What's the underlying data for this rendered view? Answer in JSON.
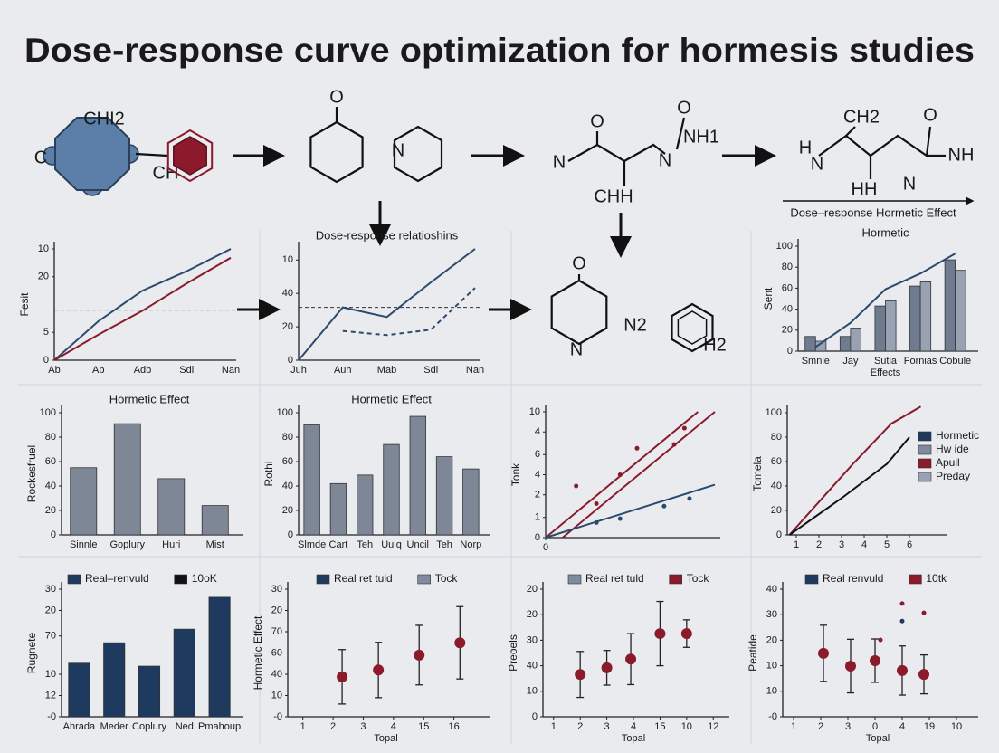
{
  "title": "Dose-response curve optimization for hormesis studies",
  "diagram": {
    "labels": [
      "CHI2",
      "C",
      "CH",
      "O",
      "N",
      "O",
      "N",
      "O",
      "N",
      "NH1",
      "CHH",
      "CH2",
      "H",
      "N",
      "NH",
      "O",
      "HH",
      "N",
      "Dose–response  Hormetic Effect",
      "O",
      "N",
      "N2",
      "H2"
    ]
  },
  "chart_data": [
    {
      "type": "line",
      "ylabel": "Fesit",
      "categories": [
        "Ab",
        "Ab",
        "Adb",
        "Sdl",
        "Nan"
      ],
      "ylim": [
        0,
        20
      ],
      "yticks": [
        0,
        5,
        {
          "value": 15,
          "label": "20"
        },
        {
          "value": 20,
          "label": "10"
        }
      ],
      "reference_line": 9,
      "series": [
        {
          "color": "#2c4a6e",
          "values": [
            0,
            7,
            12.5,
            16,
            20
          ]
        },
        {
          "color": "#8b1a2b",
          "values": [
            0,
            4.6,
            8.9,
            13.8,
            18.4
          ]
        }
      ]
    },
    {
      "type": "line",
      "title": "Dose-response relatioshins",
      "categories": [
        "Juh",
        "Auh",
        "Mab",
        "Sdl",
        "Nan"
      ],
      "ylim": [
        0,
        40
      ],
      "yticks": [
        0,
        {
          "value": 12,
          "label": "20"
        },
        {
          "value": 24,
          "label": "40"
        },
        {
          "value": 36,
          "label": "10"
        }
      ],
      "reference_line": 19,
      "series": [
        {
          "color": "#2c4a6e",
          "values": [
            0,
            19,
            15.5,
            28,
            40
          ]
        },
        {
          "color": "#2c4a6e",
          "dashed": true,
          "values": [
            null,
            10.5,
            9,
            11,
            26
          ]
        }
      ]
    },
    {
      "type": "bar_line",
      "title": "Hormetic",
      "ylabel": "Sent",
      "xlabel": "Effects",
      "categories": [
        "Smnle",
        "Jay",
        "Sutia",
        "Fornias",
        "Cobule"
      ],
      "ylim": [
        0,
        100
      ],
      "yticks": [
        0,
        20,
        40,
        60,
        80,
        100
      ],
      "series": [
        {
          "color": "#6f7b8f",
          "values": [
            14,
            14,
            43,
            62,
            87
          ]
        },
        {
          "color": "#98a2b3",
          "values": [
            9.5,
            22,
            48,
            66,
            77
          ]
        },
        {
          "color": "#2c4a6e",
          "style": "line",
          "values": [
            4,
            27,
            59,
            74,
            93
          ]
        }
      ]
    },
    {
      "type": "bar",
      "title": "Hormetic Effect",
      "ylabel": "Rockesfruel",
      "categories": [
        "Sinnle",
        "Goplury",
        "Huri",
        "Mist"
      ],
      "values": [
        55,
        91,
        46,
        24
      ],
      "color": "#7d8796",
      "ylim": [
        0,
        100
      ],
      "yticks": [
        0,
        20,
        40,
        60,
        80,
        100
      ]
    },
    {
      "type": "bar",
      "title": "Hormetic Effect",
      "ylabel": "Rothi",
      "categories": [
        "Slmde",
        "Cart",
        "Teh",
        "Uuiq",
        "Uncil",
        "Teh",
        "Norp"
      ],
      "values": [
        90,
        42,
        49,
        74,
        97,
        64,
        54
      ],
      "color": "#7d8796",
      "ylim": [
        0,
        100
      ],
      "yticks": [
        0,
        20,
        40,
        60,
        80,
        100
      ]
    },
    {
      "type": "line",
      "ylabel": "Tonk",
      "xlim": [
        0,
        10
      ],
      "xticks": [
        0
      ],
      "ylim": [
        0,
        10
      ],
      "yticks": [
        0,
        {
          "value": 1.6,
          "label": "1"
        },
        {
          "value": 3.4,
          "label": "2"
        },
        {
          "value": 5,
          "label": "4"
        },
        {
          "value": 6.6,
          "label": "6"
        },
        {
          "value": 8.4,
          "label": "4"
        },
        10
      ],
      "series": [
        {
          "color": "#8b1a2b",
          "x": [
            0,
            9
          ],
          "values": [
            0,
            10
          ]
        },
        {
          "color": "#8b1a2b",
          "x": [
            1,
            10
          ],
          "values": [
            0,
            10
          ]
        },
        {
          "color": "#2c4a6e",
          "x": [
            0,
            10
          ],
          "values": [
            0,
            4.2
          ]
        },
        {
          "color": "#8b1a2b",
          "style": "points",
          "x": [
            1.8,
            3,
            4.4,
            5.4,
            7.6,
            8.2
          ],
          "values": [
            4.1,
            2.7,
            5,
            7.1,
            7.4,
            8.7
          ]
        },
        {
          "color": "#2c4a6e",
          "style": "points",
          "x": [
            3,
            4.4,
            7,
            8.5
          ],
          "values": [
            1.2,
            1.5,
            2.5,
            3.1
          ]
        }
      ]
    },
    {
      "type": "line",
      "ylabel": "Tomela",
      "xlim": [
        0.6,
        7.4
      ],
      "xticks": [
        1,
        2,
        3,
        4,
        5,
        6
      ],
      "ylim": [
        0,
        100
      ],
      "yticks": [
        0,
        20,
        40,
        60,
        80,
        100
      ],
      "legend": [
        {
          "name": "Hormetic",
          "color": "#1f3a5f"
        },
        {
          "name": "Hw ide",
          "color": "#7f8ba0"
        },
        {
          "name": "Apuil",
          "color": "#8b1a2b"
        },
        {
          "name": "Preday",
          "color": "#98a2b3"
        }
      ],
      "series": [
        {
          "color": "#8b1a2b",
          "x": [
            0.7,
            3.5,
            5.2,
            6.5
          ],
          "values": [
            0,
            58,
            91,
            105
          ]
        },
        {
          "color": "#111111",
          "x": [
            0.7,
            3,
            5,
            6
          ],
          "values": [
            0,
            30,
            58,
            80
          ]
        }
      ]
    },
    {
      "type": "bar",
      "ylabel": "Rugnete",
      "categories": [
        "Ahrada",
        "Meder",
        "Coplury",
        "Ned",
        "Pmahoup"
      ],
      "values": [
        12.6,
        17.4,
        11.9,
        20.6,
        28.1
      ],
      "color": "#1f3a5f",
      "ylim": [
        0,
        30
      ],
      "yticks": [
        {
          "value": 0,
          "label": "-0"
        },
        {
          "value": 5,
          "label": "12"
        },
        10,
        {
          "value": 19,
          "label": "70"
        },
        {
          "value": 25,
          "label": "20"
        },
        30
      ],
      "legend": [
        {
          "name": "Real–renvuld",
          "color": "#1f3a5f"
        },
        {
          "name": "10oK",
          "color": "#111111"
        }
      ]
    },
    {
      "type": "errorbar",
      "ylabel": "Hormetic Effect",
      "xlabel": "Topal",
      "xlim": [
        0.5,
        7
      ],
      "xticks": [
        1,
        2,
        3,
        4,
        {
          "value": 5,
          "label": "15"
        },
        {
          "value": 6,
          "label": "16"
        }
      ],
      "ylim": [
        0,
        30
      ],
      "yticks": [
        {
          "value": 0,
          "label": "-0"
        },
        {
          "value": 5,
          "label": "10"
        },
        {
          "value": 10,
          "label": "40"
        },
        {
          "value": 15,
          "label": "60"
        },
        {
          "value": 20,
          "label": "70"
        },
        {
          "value": 25,
          "label": "20"
        },
        30
      ],
      "legend": [
        {
          "name": "Real ret tuld",
          "color": "#1f3a5f"
        },
        {
          "name": "Tock",
          "color": "#7f8ba0"
        }
      ],
      "series": [
        {
          "color": "#8b1a2b",
          "x": [
            2.3,
            3.5,
            4.85,
            6.2
          ],
          "values": [
            9.4,
            11,
            14.5,
            17.4
          ],
          "errors": [
            6.4,
            6.5,
            7,
            8.5
          ]
        }
      ]
    },
    {
      "type": "errorbar",
      "ylabel": "Preoels",
      "xlabel": "Topal",
      "xlim": [
        0.6,
        7.4
      ],
      "xticks": [
        1,
        2,
        3,
        4,
        {
          "value": 5,
          "label": "15"
        },
        {
          "value": 6,
          "label": "10"
        },
        {
          "value": 7,
          "label": "12"
        }
      ],
      "ylim": [
        0,
        25
      ],
      "yticks": [
        0,
        {
          "value": 5,
          "label": "10"
        },
        {
          "value": 10,
          "label": "40"
        },
        {
          "value": 15,
          "label": "30"
        },
        {
          "value": 20,
          "label": "20"
        },
        {
          "value": 25,
          "label": "20"
        }
      ],
      "legend": [
        {
          "name": "Real ret tuld",
          "color": "#7f8ba0"
        },
        {
          "name": "Tock",
          "color": "#8b1a2b"
        }
      ],
      "series": [
        {
          "color": "#8b1a2b",
          "x": [
            2,
            3,
            3.9,
            5,
            6
          ],
          "values": [
            8.3,
            9.6,
            11.3,
            16.3,
            16.3
          ],
          "errors": [
            4.5,
            3.4,
            5,
            6.3,
            2.7
          ]
        }
      ]
    },
    {
      "type": "errorbar",
      "ylabel": "Peatide",
      "xlabel": "Topal",
      "xlim": [
        0.6,
        7.6
      ],
      "xticks": [
        1,
        2,
        3,
        {
          "value": 4,
          "label": "0"
        },
        {
          "value": 5,
          "label": "4"
        },
        {
          "value": 6,
          "label": "19"
        },
        {
          "value": 7,
          "label": "10"
        }
      ],
      "ylim": [
        0,
        40
      ],
      "yticks": [
        {
          "value": 0,
          "label": "-0"
        },
        {
          "value": 8,
          "label": "10"
        },
        {
          "value": 16,
          "label": "10"
        },
        {
          "value": 24,
          "label": "20"
        },
        {
          "value": 32,
          "label": "30"
        },
        40
      ],
      "legend": [
        {
          "name": "Real renvuld",
          "color": "#1f3a5f"
        },
        {
          "name": "10tk",
          "color": "#8b1a2b"
        }
      ],
      "series": [
        {
          "color": "#8b1a2b",
          "x": [
            2.1,
            3.1,
            4,
            5,
            5.8
          ],
          "values": [
            19.9,
            15.9,
            17.6,
            14.5,
            13.3
          ],
          "errors": [
            8.8,
            8.4,
            6.8,
            7.7,
            6.1
          ]
        },
        {
          "color": "#8b1a2b",
          "style": "points",
          "x": [
            4.2,
            5,
            5.8
          ],
          "values": [
            24.1,
            35.5,
            32.6
          ]
        },
        {
          "color": "#1f3a5f",
          "style": "points",
          "x": [
            5
          ],
          "values": [
            30
          ]
        }
      ]
    }
  ]
}
